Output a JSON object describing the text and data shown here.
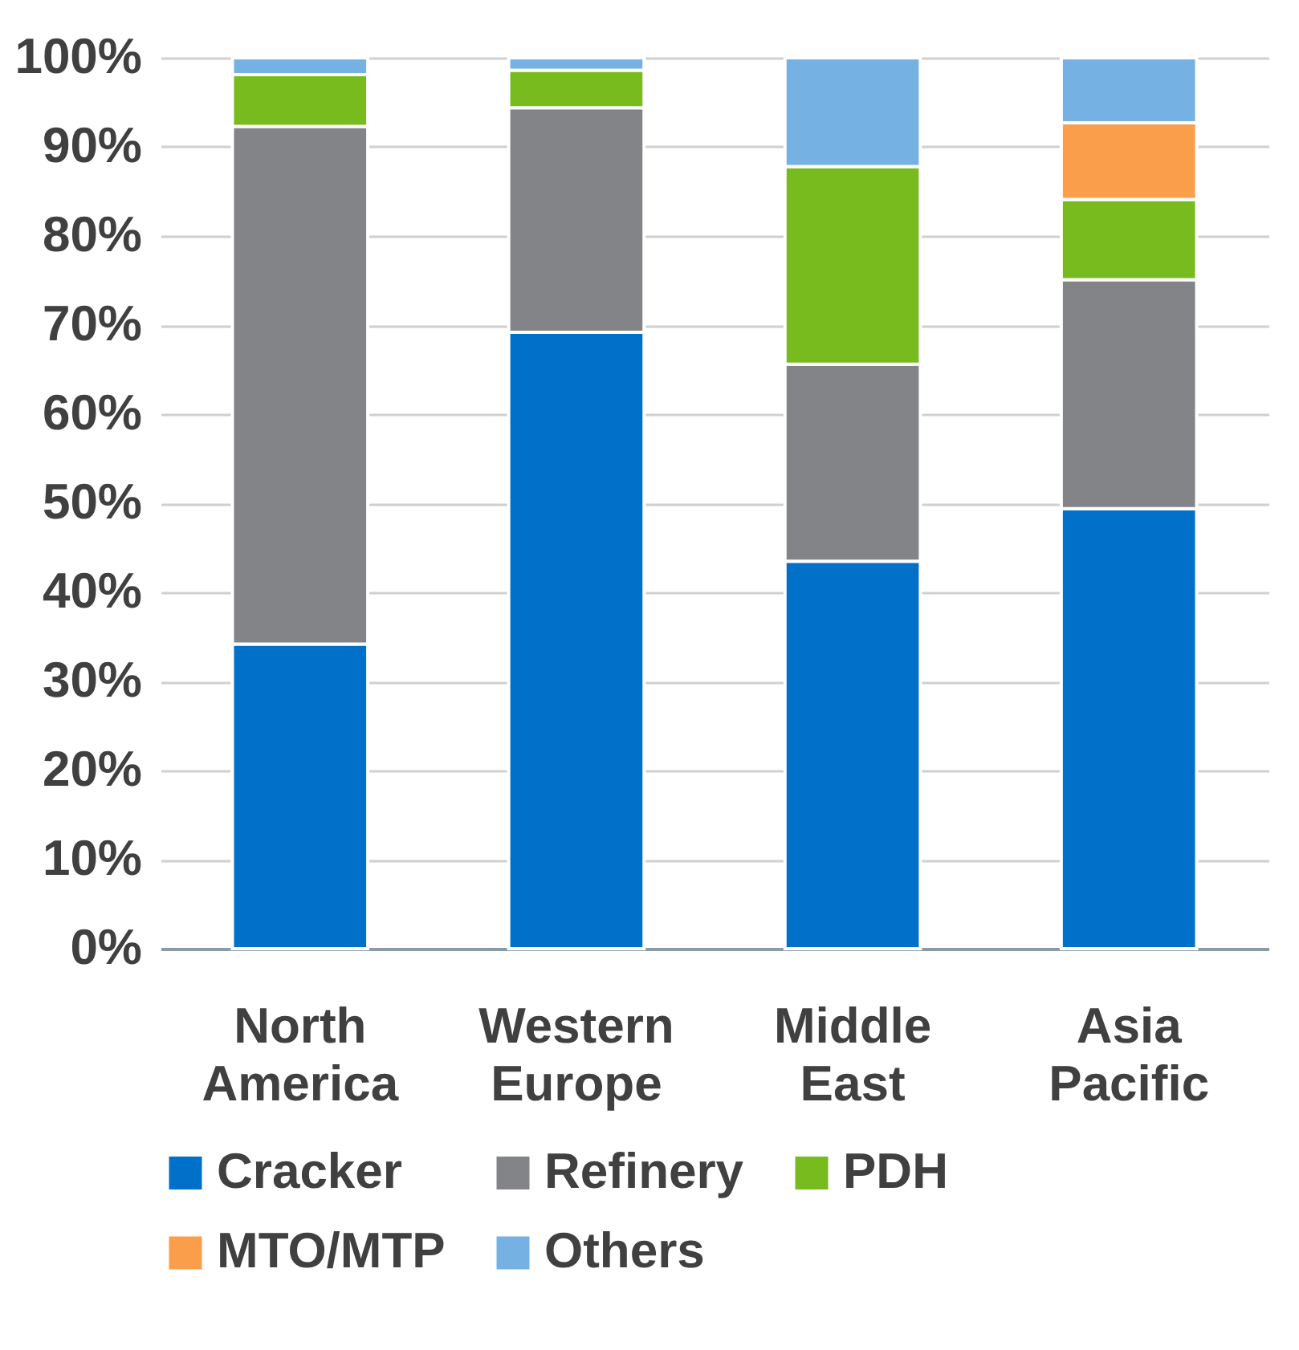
{
  "chart_data": {
    "type": "bar",
    "stacked": true,
    "categories": [
      "North America",
      "Western Europe",
      "Middle East",
      "Asia Pacific"
    ],
    "series": [
      {
        "name": "Cracker",
        "color": "#0070c8",
        "values": [
          34.2,
          69.2,
          43.5,
          49.4
        ]
      },
      {
        "name": "Refinery",
        "color": "#838487",
        "values": [
          58.1,
          25.2,
          22.1,
          25.7
        ]
      },
      {
        "name": "PDH",
        "color": "#77bb1f",
        "values": [
          5.8,
          4.2,
          22.2,
          9.0
        ]
      },
      {
        "name": "MTO/MTP",
        "color": "#fa9e4b",
        "values": [
          null,
          null,
          null,
          8.6
        ]
      },
      {
        "name": "Others",
        "color": "#76b1e4",
        "values": [
          1.9,
          1.4,
          12.2,
          7.3
        ]
      }
    ],
    "ylim": [
      0,
      100
    ],
    "yticks": [
      {
        "value": 0,
        "label": "0%"
      },
      {
        "value": 10,
        "label": "10%"
      },
      {
        "value": 20,
        "label": "20%"
      },
      {
        "value": 30,
        "label": "30%"
      },
      {
        "value": 40,
        "label": "40%"
      },
      {
        "value": 50,
        "label": "50%"
      },
      {
        "value": 60,
        "label": "60%"
      },
      {
        "value": 70,
        "label": "70%"
      },
      {
        "value": 80,
        "label": "80%"
      },
      {
        "value": 90,
        "label": "90%"
      },
      {
        "value": 100,
        "label": "100%"
      }
    ],
    "grid": "y",
    "legend": "bottom"
  }
}
